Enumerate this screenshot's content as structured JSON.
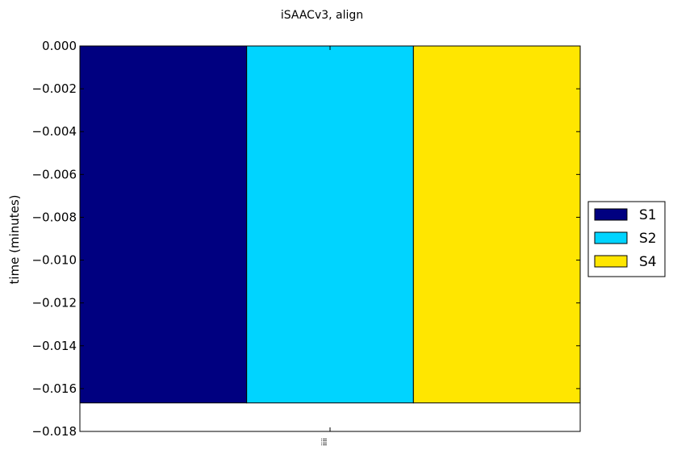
{
  "chart_data": {
    "type": "bar",
    "title": "iSAACv3, align",
    "ylabel": "time (minutes)",
    "xlabel": "",
    "categories": [
      "iiii"
    ],
    "ylim": [
      -0.018,
      0.0
    ],
    "yticks": [
      "0.000",
      "−0.002",
      "−0.004",
      "−0.006",
      "−0.008",
      "−0.010",
      "−0.012",
      "−0.014",
      "−0.016",
      "−0.018"
    ],
    "grid": false,
    "legend_position": "right",
    "series": [
      {
        "name": "S1",
        "values": [
          -0.01667
        ],
        "color": "#000080"
      },
      {
        "name": "S2",
        "values": [
          -0.01667
        ],
        "color": "#00d4ff"
      },
      {
        "name": "S4",
        "values": [
          -0.01667
        ],
        "color": "#ffe600"
      }
    ]
  }
}
